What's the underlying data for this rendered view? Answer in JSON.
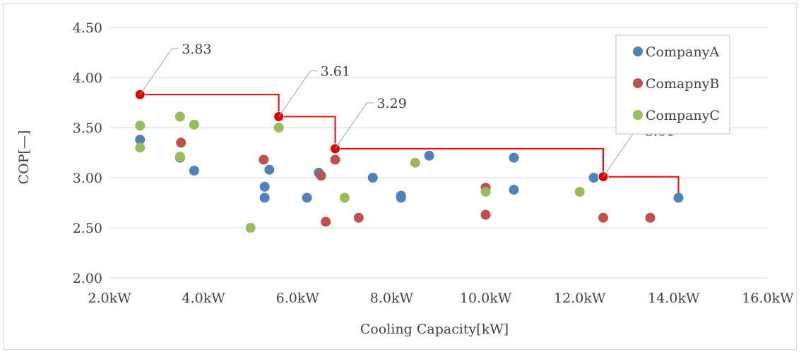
{
  "chart_data": {
    "type": "scatter",
    "title": "",
    "xlabel": "Cooling Capacity[kW]",
    "ylabel": "COP[—]",
    "xlim": [
      2.0,
      16.0
    ],
    "ylim": [
      2.0,
      4.5
    ],
    "x_ticks": [
      2,
      4,
      6,
      8,
      10,
      12,
      14,
      16
    ],
    "x_tick_labels": [
      "2.0kW",
      "4.0kW",
      "6.0kW",
      "8.0kW",
      "10.0kW",
      "12.0kW",
      "14.0kW",
      "16.0kW"
    ],
    "y_ticks": [
      2.0,
      2.5,
      3.0,
      3.5,
      4.0,
      4.5
    ],
    "y_tick_labels": [
      "2.00",
      "2.50",
      "3.00",
      "3.50",
      "4.00",
      "4.50"
    ],
    "grid": "horizontal",
    "legend_position": "top-right",
    "series": [
      {
        "name": "CompanyA",
        "color": "#4f81bd",
        "points": [
          [
            2.65,
            3.38
          ],
          [
            3.5,
            3.2
          ],
          [
            3.8,
            3.07
          ],
          [
            5.3,
            2.91
          ],
          [
            5.3,
            2.8
          ],
          [
            5.4,
            3.08
          ],
          [
            6.2,
            2.8
          ],
          [
            6.45,
            3.05
          ],
          [
            7.6,
            3.0
          ],
          [
            8.2,
            2.82
          ],
          [
            8.2,
            2.8
          ],
          [
            8.8,
            3.22
          ],
          [
            10.6,
            3.2
          ],
          [
            10.6,
            2.88
          ],
          [
            12.3,
            3.0
          ],
          [
            14.1,
            2.8
          ]
        ]
      },
      {
        "name": "ComapnyB",
        "color": "#c0504d",
        "points": [
          [
            3.52,
            3.35
          ],
          [
            5.28,
            3.18
          ],
          [
            6.5,
            3.02
          ],
          [
            6.6,
            2.56
          ],
          [
            6.8,
            3.18
          ],
          [
            7.3,
            2.6
          ],
          [
            10.0,
            2.9
          ],
          [
            10.0,
            2.63
          ],
          [
            12.5,
            2.6
          ],
          [
            13.5,
            2.6
          ]
        ]
      },
      {
        "name": "CompanyC",
        "color": "#9bbb59",
        "points": [
          [
            2.65,
            3.52
          ],
          [
            2.65,
            3.3
          ],
          [
            3.5,
            3.61
          ],
          [
            3.5,
            3.21
          ],
          [
            3.8,
            3.53
          ],
          [
            5.0,
            2.5
          ],
          [
            5.6,
            3.5
          ],
          [
            7.0,
            2.8
          ],
          [
            8.5,
            3.15
          ],
          [
            10.0,
            2.86
          ],
          [
            12.0,
            2.86
          ]
        ]
      }
    ],
    "frontier": {
      "color": "#ff0000",
      "highlight_color": "#e00000",
      "step_points": [
        [
          2.65,
          3.83
        ],
        [
          5.6,
          3.61
        ],
        [
          6.8,
          3.29
        ],
        [
          12.5,
          3.01
        ],
        [
          14.1,
          2.8
        ]
      ],
      "highlighted": [
        {
          "x": 2.65,
          "y": 3.83,
          "label": "3.83"
        },
        {
          "x": 5.6,
          "y": 3.61,
          "label": "3.61"
        },
        {
          "x": 6.8,
          "y": 3.29,
          "label": "3.29"
        },
        {
          "x": 12.5,
          "y": 3.01,
          "label": "3.01"
        }
      ]
    }
  }
}
